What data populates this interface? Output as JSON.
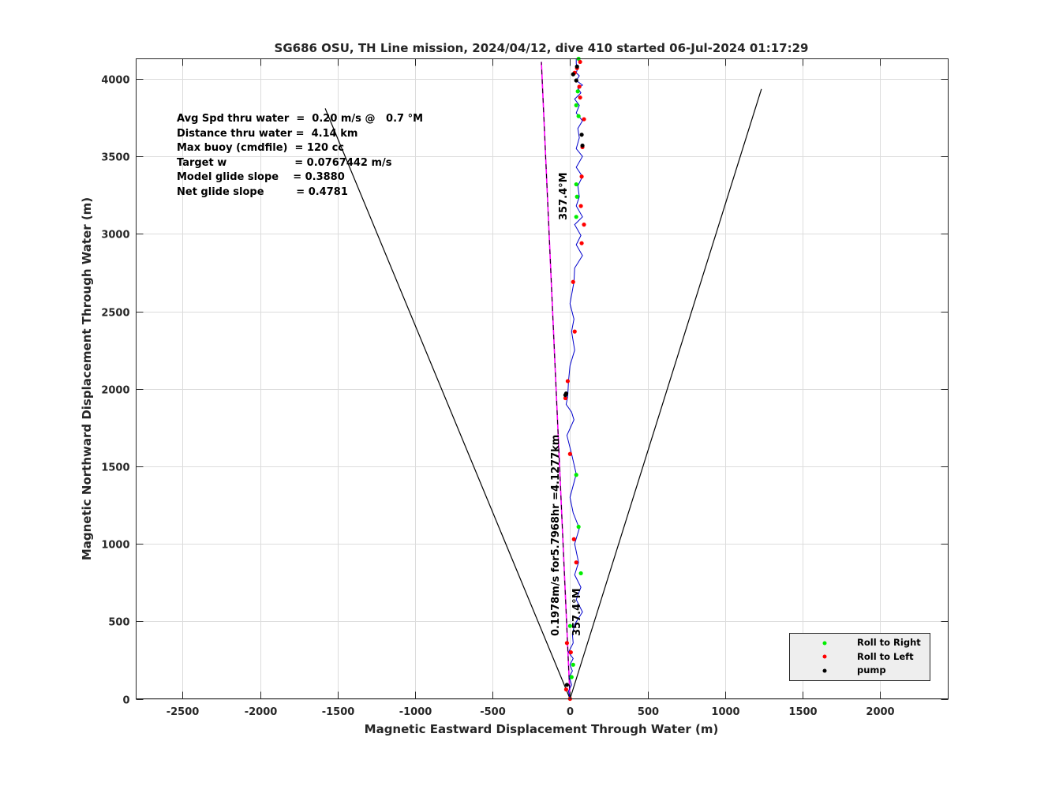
{
  "chart_data": {
    "type": "line",
    "title": "SG686 OSU, TH Line mission, 2024/04/12, dive 410 started 06-Jul-2024 01:17:29",
    "xlabel": "Magnetic Eastward Displacement Through Water (m)",
    "ylabel": "Magnetic Northward Displacement Through Water (m)",
    "xlim": [
      -2800,
      2440
    ],
    "ylim": [
      0,
      4130
    ],
    "xticks": [
      -2500,
      -2000,
      -1500,
      -1000,
      -500,
      0,
      500,
      1000,
      1500,
      2000
    ],
    "yticks": [
      0,
      500,
      1000,
      1500,
      2000,
      2500,
      3000,
      3500,
      4000
    ],
    "xtick_labels": [
      "-2500",
      "-2000",
      "-1500",
      "-1000",
      "-500",
      "0",
      "500",
      "1000",
      "1500",
      "2000"
    ],
    "ytick_labels": [
      "0",
      "500",
      "1000",
      "1500",
      "2000",
      "2500",
      "3000",
      "3500",
      "4000"
    ],
    "grid": true,
    "info_lines": [
      "Avg Spd thru water  =  0.20 m/s @   0.7 °M",
      "Distance thru water =  4.14 km",
      "Max buoy (cmdfile)  = 120 cc",
      "Target w                   = 0.0767442 m/s",
      "Model glide slope    = 0.3880",
      "Net glide slope         = 0.4781"
    ],
    "annotations": {
      "heading_top": "357.4°M",
      "heading_bottom": "357.4°M",
      "speed": "0.1978m/s for5.7968hr =4.1277km"
    },
    "cone_lines": [
      {
        "x": [
          0,
          -1580
        ],
        "y": [
          0,
          3810
        ],
        "color": "#000000"
      },
      {
        "x": [
          0,
          1235
        ],
        "y": [
          0,
          3935
        ],
        "color": "#000000"
      }
    ],
    "heading_line": {
      "x": [
        0,
        -185
      ],
      "y": [
        0,
        4110
      ],
      "colors": [
        "#ff00ff",
        "#000000"
      ]
    },
    "track": {
      "color": "#0000cc",
      "x": [
        0,
        -10,
        10,
        -5,
        15,
        0,
        20,
        -10,
        20,
        15,
        30,
        80,
        40,
        70,
        30,
        55,
        30,
        60,
        20,
        0,
        40,
        10,
        -20,
        25,
        10,
        -25,
        -15,
        -10,
        0,
        30,
        10,
        25,
        0,
        25,
        30,
        80,
        40,
        70,
        30,
        80,
        40,
        60,
        50,
        80,
        40,
        80,
        40,
        60,
        50,
        80,
        40,
        60,
        30,
        70,
        50,
        80,
        40,
        60,
        40,
        50,
        40,
        40
      ],
      "y": [
        0,
        50,
        90,
        140,
        180,
        220,
        260,
        300,
        360,
        420,
        480,
        560,
        640,
        720,
        800,
        880,
        1000,
        1100,
        1200,
        1300,
        1450,
        1580,
        1700,
        1800,
        1850,
        1900,
        1950,
        2050,
        2150,
        2250,
        2370,
        2450,
        2550,
        2690,
        2780,
        2860,
        2930,
        2990,
        3060,
        3110,
        3180,
        3240,
        3310,
        3370,
        3430,
        3500,
        3550,
        3620,
        3680,
        3730,
        3780,
        3830,
        3870,
        3910,
        3940,
        3960,
        3990,
        4020,
        4040,
        4070,
        4100,
        4130
      ]
    },
    "markers": [
      {
        "x": 70,
        "y": 810,
        "color": "#00ee00"
      },
      {
        "x": 55,
        "y": 1110,
        "color": "#00ee00"
      },
      {
        "x": 40,
        "y": 1445,
        "color": "#00ee00"
      },
      {
        "x": 0,
        "y": 470,
        "color": "#00ee00"
      },
      {
        "x": 20,
        "y": 220,
        "color": "#00ee00"
      },
      {
        "x": 10,
        "y": 140,
        "color": "#00ee00"
      },
      {
        "x": 40,
        "y": 3320,
        "color": "#00ee00"
      },
      {
        "x": 40,
        "y": 3110,
        "color": "#00ee00"
      },
      {
        "x": 40,
        "y": 3830,
        "color": "#00ee00"
      },
      {
        "x": 50,
        "y": 3920,
        "color": "#00ee00"
      },
      {
        "x": 55,
        "y": 4130,
        "color": "#00ee00"
      },
      {
        "x": 55,
        "y": 3760,
        "color": "#00ee00"
      },
      {
        "x": 45,
        "y": 3240,
        "color": "#00ee00"
      },
      {
        "x": 0,
        "y": 0,
        "color": "#ff0000"
      },
      {
        "x": -25,
        "y": 60,
        "color": "#ff0000"
      },
      {
        "x": -20,
        "y": 360,
        "color": "#ff0000"
      },
      {
        "x": 5,
        "y": 300,
        "color": "#ff0000"
      },
      {
        "x": 40,
        "y": 880,
        "color": "#ff0000"
      },
      {
        "x": 25,
        "y": 1030,
        "color": "#ff0000"
      },
      {
        "x": 0,
        "y": 1580,
        "color": "#ff0000"
      },
      {
        "x": -30,
        "y": 1940,
        "color": "#ff0000"
      },
      {
        "x": -15,
        "y": 2050,
        "color": "#ff0000"
      },
      {
        "x": 30,
        "y": 2370,
        "color": "#ff0000"
      },
      {
        "x": 20,
        "y": 2690,
        "color": "#ff0000"
      },
      {
        "x": 75,
        "y": 2940,
        "color": "#ff0000"
      },
      {
        "x": 90,
        "y": 3060,
        "color": "#ff0000"
      },
      {
        "x": 70,
        "y": 3180,
        "color": "#ff0000"
      },
      {
        "x": 75,
        "y": 3370,
        "color": "#ff0000"
      },
      {
        "x": 80,
        "y": 3560,
        "color": "#ff0000"
      },
      {
        "x": 90,
        "y": 3740,
        "color": "#ff0000"
      },
      {
        "x": 65,
        "y": 3880,
        "color": "#ff0000"
      },
      {
        "x": 60,
        "y": 3950,
        "color": "#ff0000"
      },
      {
        "x": 45,
        "y": 4070,
        "color": "#ff0000"
      },
      {
        "x": 30,
        "y": 4040,
        "color": "#ff0000"
      },
      {
        "x": 65,
        "y": 4110,
        "color": "#ff0000"
      },
      {
        "x": -30,
        "y": 1960,
        "color": "#000000"
      },
      {
        "x": -25,
        "y": 1970,
        "color": "#000000"
      },
      {
        "x": 75,
        "y": 3640,
        "color": "#000000"
      },
      {
        "x": 80,
        "y": 3570,
        "color": "#000000"
      },
      {
        "x": 40,
        "y": 3990,
        "color": "#000000"
      },
      {
        "x": 20,
        "y": 4030,
        "color": "#000000"
      },
      {
        "x": 45,
        "y": 4080,
        "color": "#000000"
      },
      {
        "x": -20,
        "y": 90,
        "color": "#000000"
      }
    ],
    "legend": {
      "placement": "bottom-right",
      "entries": [
        {
          "label": "Roll to Right",
          "color": "#00ee00"
        },
        {
          "label": "Roll to Left",
          "color": "#ff0000"
        },
        {
          "label": "pump",
          "color": "#000000"
        }
      ]
    }
  }
}
